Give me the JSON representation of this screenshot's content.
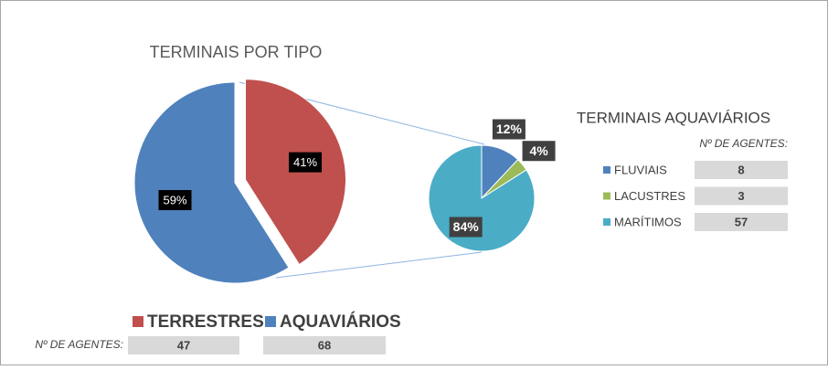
{
  "chart_data": [
    {
      "type": "pie",
      "title": "TERMINAIS POR TIPO",
      "categories": [
        "TERRESTRES",
        "AQUAVIÁRIOS"
      ],
      "values": [
        41,
        59
      ],
      "value_labels": [
        "41%",
        "59%"
      ],
      "colors": [
        "#c0504d",
        "#4f81bd"
      ],
      "agents_label": "Nº DE AGENTES:",
      "agents": [
        47,
        68
      ]
    },
    {
      "type": "pie",
      "title": "TERMINAIS AQUAVIÁRIOS",
      "categories": [
        "FLUVIAIS",
        "LACUSTRES",
        "MARÍTIMOS"
      ],
      "values": [
        12,
        4,
        84
      ],
      "value_labels": [
        "12%",
        "4%",
        "84%"
      ],
      "colors": [
        "#4f81bd",
        "#9bbb59",
        "#4bacc6"
      ],
      "agents_label": "Nº DE AGENTES:",
      "agents": [
        8,
        3,
        57
      ]
    }
  ]
}
